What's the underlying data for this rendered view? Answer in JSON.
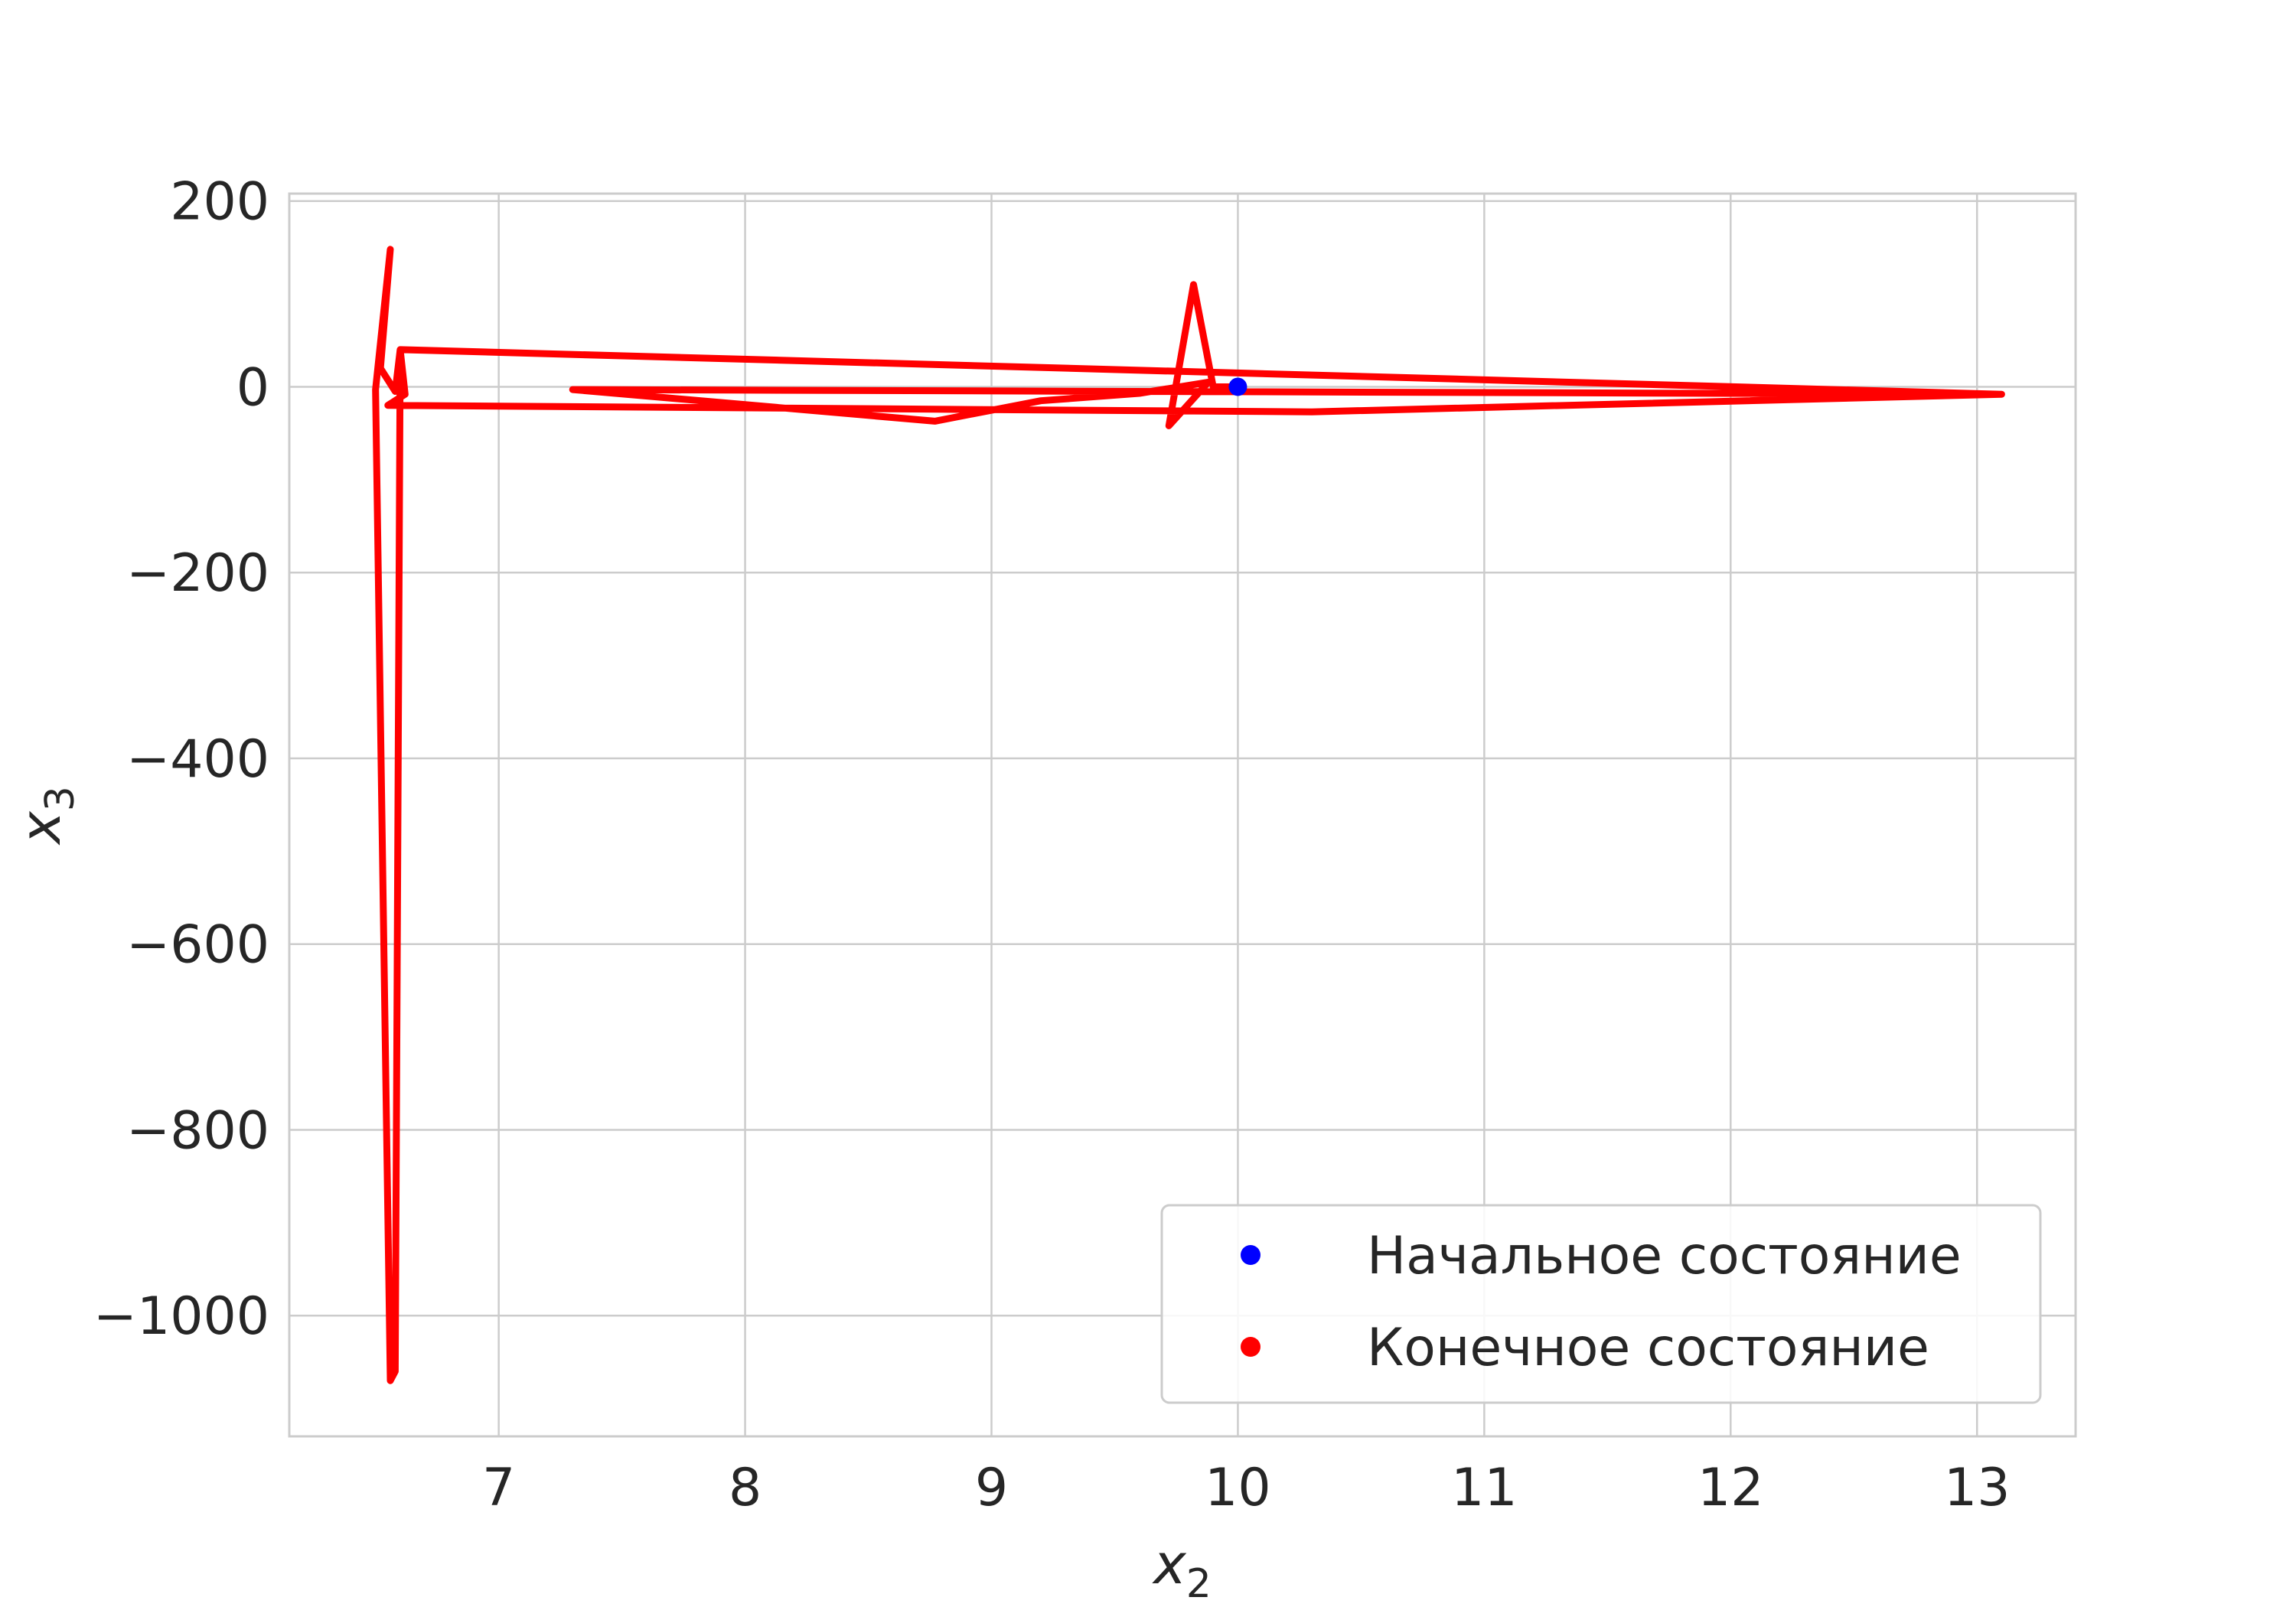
{
  "chart_data": {
    "type": "line",
    "xlabel": "x",
    "xlabel_sub": "2",
    "ylabel": "x",
    "ylabel_sub": "3",
    "xlim": [
      6.15,
      13.4
    ],
    "ylim": [
      -1130,
      208
    ],
    "xticks": [
      7,
      8,
      9,
      10,
      11,
      12,
      13
    ],
    "yticks": [
      200,
      0,
      -200,
      -400,
      -600,
      -800,
      -1000
    ],
    "ytick_labels": [
      "200",
      "0",
      "−200",
      "−400",
      "−600",
      "−800",
      "−1000"
    ],
    "grid": true,
    "legend_position": "lower-right",
    "trajectory_color": "#ff0000",
    "start_color": "#0000ff",
    "trajectory": {
      "x": [
        10.0,
        9.9,
        9.82,
        9.72,
        9.88,
        9.6,
        9.2,
        8.77,
        7.3,
        13.1,
        10.3,
        6.55,
        6.62,
        6.6,
        6.58,
        6.52,
        6.56,
        6.5,
        6.56,
        6.58,
        6.6,
        13.1
      ],
      "y": [
        0,
        0,
        110,
        -42,
        5,
        -7,
        -15,
        -37,
        -3,
        -8,
        -27,
        -20,
        -8,
        40,
        -5,
        20,
        148,
        -3,
        -1070,
        -1060,
        40,
        -8
      ]
    },
    "start_point": {
      "x": 10.0,
      "y": 0
    },
    "legend": [
      {
        "label": "Начальное состояние",
        "color": "#0000ff"
      },
      {
        "label": "Конечное состояние",
        "color": "#ff0000"
      }
    ]
  }
}
